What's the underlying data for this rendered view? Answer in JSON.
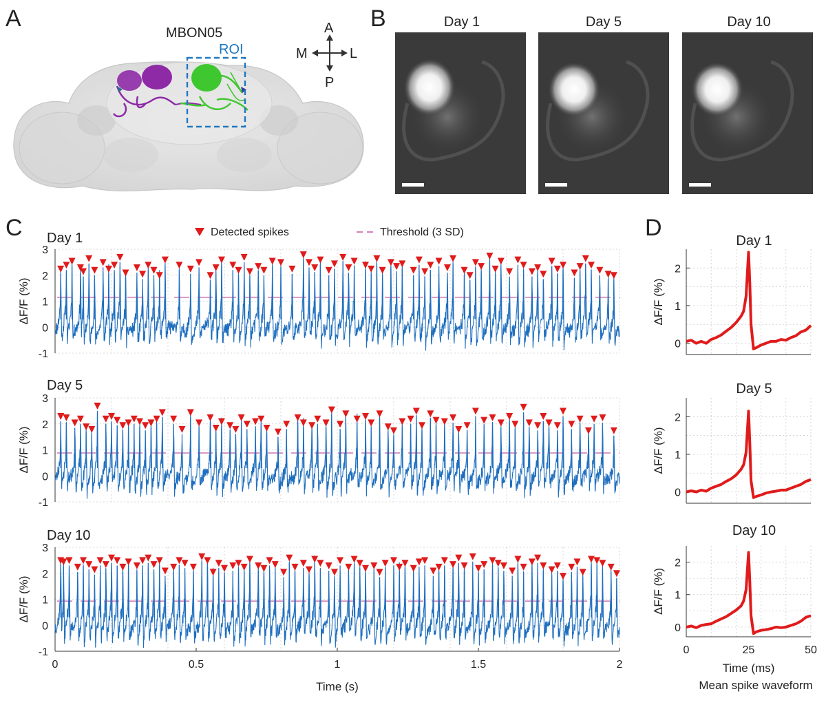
{
  "panels": {
    "A": "A",
    "B": "B",
    "C": "C",
    "D": "D"
  },
  "anatomy": {
    "neuron_label": "MBON05",
    "roi_label": "ROI",
    "compass": {
      "anterior": "A",
      "posterior": "P",
      "medial": "M",
      "lateral": "L"
    },
    "colors": {
      "left_neuron": "#8e2aa6",
      "right_neuron": "#3fc72f",
      "roi_box": "#1f78c1"
    }
  },
  "imaging": {
    "days": [
      "Day 1",
      "Day 5",
      "Day 10"
    ]
  },
  "legend": {
    "spikes_label": "Detected spikes",
    "threshold_label": "Threshold (3 SD)"
  },
  "colors": {
    "trace": "#1f6fbf",
    "spike_marker": "#e01b1b",
    "threshold": "#c45aa0",
    "waveform": "#e01b1b"
  },
  "chart_data": [
    {
      "type": "line",
      "title": "Day 1",
      "xlabel": "Time (s)",
      "ylabel": "ΔF/F (%)",
      "xlim": [
        0,
        2
      ],
      "ylim": [
        -1,
        3
      ],
      "yticks": [
        "3",
        "2",
        "1",
        "0",
        "-1"
      ],
      "xticks": [
        "0",
        "0.5",
        "1",
        "1.5",
        "2"
      ],
      "threshold": 1.15,
      "spike_times": [
        0.02,
        0.04,
        0.06,
        0.09,
        0.1,
        0.12,
        0.14,
        0.17,
        0.19,
        0.21,
        0.23,
        0.25,
        0.29,
        0.31,
        0.33,
        0.35,
        0.37,
        0.39,
        0.44,
        0.48,
        0.51,
        0.55,
        0.57,
        0.59,
        0.63,
        0.65,
        0.67,
        0.69,
        0.72,
        0.74,
        0.77,
        0.8,
        0.84,
        0.88,
        0.9,
        0.92,
        0.94,
        0.97,
        0.99,
        1.02,
        1.04,
        1.06,
        1.1,
        1.12,
        1.14,
        1.16,
        1.19,
        1.21,
        1.23,
        1.27,
        1.29,
        1.31,
        1.33,
        1.36,
        1.39,
        1.41,
        1.45,
        1.47,
        1.49,
        1.51,
        1.54,
        1.56,
        1.58,
        1.61,
        1.64,
        1.66,
        1.69,
        1.71,
        1.73,
        1.76,
        1.78,
        1.8,
        1.84,
        1.86,
        1.88,
        1.9,
        1.93,
        1.96,
        1.98
      ],
      "spike_peaks": [
        2.05,
        2.2,
        2.35,
        2.1,
        1.95,
        2.45,
        2.0,
        2.3,
        2.05,
        2.2,
        2.5,
        1.9,
        2.1,
        1.85,
        2.2,
        2.0,
        1.8,
        2.4,
        2.2,
        2.05,
        2.3,
        1.8,
        2.1,
        2.4,
        2.2,
        2.0,
        2.5,
        1.95,
        2.15,
        2.0,
        2.35,
        2.3,
        2.05,
        2.6,
        2.3,
        2.1,
        2.4,
        2.0,
        2.25,
        2.5,
        2.1,
        2.35,
        2.2,
        2.05,
        2.45,
        2.0,
        2.3,
        2.15,
        2.25,
        2.0,
        2.4,
        1.95,
        2.2,
        2.35,
        2.1,
        2.45,
        2.0,
        1.8,
        2.3,
        2.15,
        2.55,
        2.05,
        2.35,
        1.95,
        2.4,
        2.2,
        1.95,
        2.1,
        1.85,
        2.35,
        2.05,
        2.2,
        1.9,
        2.15,
        2.45,
        2.2,
        2.0,
        1.85,
        1.8
      ],
      "trace_seed": 11
    },
    {
      "type": "line",
      "title": "Day 5",
      "xlabel": "Time (s)",
      "ylabel": "ΔF/F (%)",
      "xlim": [
        0,
        2
      ],
      "ylim": [
        -1,
        3
      ],
      "yticks": [
        "3",
        "2",
        "1",
        "0",
        "-1"
      ],
      "xticks": [
        "0",
        "0.5",
        "1",
        "1.5",
        "2"
      ],
      "threshold": 0.88,
      "spike_times": [
        0.02,
        0.04,
        0.07,
        0.09,
        0.11,
        0.13,
        0.15,
        0.18,
        0.2,
        0.22,
        0.24,
        0.26,
        0.28,
        0.3,
        0.32,
        0.34,
        0.36,
        0.38,
        0.42,
        0.45,
        0.48,
        0.51,
        0.55,
        0.57,
        0.59,
        0.62,
        0.64,
        0.66,
        0.68,
        0.71,
        0.73,
        0.75,
        0.79,
        0.82,
        0.86,
        0.88,
        0.91,
        0.93,
        0.96,
        0.98,
        1.01,
        1.03,
        1.07,
        1.1,
        1.12,
        1.15,
        1.18,
        1.2,
        1.23,
        1.26,
        1.28,
        1.3,
        1.33,
        1.35,
        1.38,
        1.41,
        1.43,
        1.46,
        1.49,
        1.52,
        1.55,
        1.58,
        1.61,
        1.63,
        1.66,
        1.68,
        1.71,
        1.73,
        1.75,
        1.78,
        1.8,
        1.83,
        1.86,
        1.89,
        1.91,
        1.94,
        1.98
      ],
      "spike_peaks": [
        2.1,
        2.05,
        1.85,
        2.0,
        1.7,
        1.6,
        2.5,
        2.0,
        2.1,
        1.95,
        1.75,
        1.85,
        2.0,
        1.9,
        1.75,
        1.85,
        2.0,
        2.25,
        2.0,
        1.6,
        2.25,
        1.85,
        2.05,
        1.65,
        1.9,
        1.75,
        1.6,
        2.05,
        1.8,
        1.9,
        2.0,
        1.65,
        1.5,
        1.8,
        2.05,
        1.85,
        1.75,
        2.0,
        1.85,
        2.35,
        1.8,
        2.2,
        2.0,
        2.1,
        1.85,
        2.2,
        1.7,
        1.55,
        1.9,
        2.0,
        2.3,
        1.75,
        2.2,
        1.95,
        1.9,
        2.05,
        1.6,
        1.75,
        2.3,
        1.95,
        2.05,
        1.85,
        2.1,
        1.8,
        2.45,
        1.85,
        1.75,
        2.1,
        1.85,
        1.75,
        2.3,
        1.8,
        2.0,
        1.55,
        2.0,
        2.05,
        1.55
      ],
      "trace_seed": 23
    },
    {
      "type": "line",
      "title": "Day 10",
      "xlabel": "Time (s)",
      "ylabel": "ΔF/F (%)",
      "xlim": [
        0,
        2
      ],
      "ylim": [
        -1,
        3
      ],
      "yticks": [
        "3",
        "2",
        "1",
        "0",
        "-1"
      ],
      "xticks": [
        "0",
        "0.5",
        "1",
        "1.5",
        "2"
      ],
      "threshold": 0.93,
      "spike_times": [
        0.02,
        0.03,
        0.05,
        0.08,
        0.1,
        0.12,
        0.14,
        0.16,
        0.18,
        0.2,
        0.22,
        0.24,
        0.26,
        0.29,
        0.31,
        0.33,
        0.35,
        0.37,
        0.39,
        0.42,
        0.44,
        0.46,
        0.49,
        0.52,
        0.54,
        0.56,
        0.58,
        0.6,
        0.63,
        0.65,
        0.67,
        0.69,
        0.72,
        0.74,
        0.76,
        0.78,
        0.81,
        0.83,
        0.85,
        0.88,
        0.9,
        0.92,
        0.94,
        0.97,
        0.99,
        1.01,
        1.04,
        1.06,
        1.08,
        1.1,
        1.13,
        1.15,
        1.17,
        1.2,
        1.22,
        1.24,
        1.27,
        1.29,
        1.31,
        1.34,
        1.36,
        1.38,
        1.41,
        1.43,
        1.45,
        1.48,
        1.5,
        1.52,
        1.55,
        1.57,
        1.59,
        1.62,
        1.64,
        1.66,
        1.69,
        1.71,
        1.73,
        1.76,
        1.78,
        1.8,
        1.83,
        1.85,
        1.87,
        1.9,
        1.92,
        1.94,
        1.97,
        1.99
      ],
      "spike_peaks": [
        2.3,
        2.25,
        2.3,
        2.05,
        2.3,
        2.15,
        1.95,
        2.3,
        2.15,
        2.4,
        2.3,
        2.05,
        2.25,
        2.1,
        2.3,
        2.4,
        2.15,
        2.3,
        1.9,
        2.05,
        2.3,
        2.2,
        2.05,
        2.45,
        2.3,
        1.85,
        2.2,
        2.0,
        2.1,
        2.2,
        2.05,
        2.35,
        2.1,
        2.0,
        2.3,
        2.15,
        1.85,
        2.4,
        2.05,
        2.2,
        1.95,
        2.35,
        2.2,
        2.1,
        1.85,
        2.3,
        2.05,
        2.35,
        2.2,
        2.0,
        2.1,
        1.85,
        2.2,
        2.3,
        2.05,
        2.2,
        2.0,
        2.25,
        2.3,
        1.9,
        2.05,
        2.3,
        2.15,
        2.4,
        2.1,
        2.45,
        2.0,
        2.15,
        2.3,
        2.2,
        2.1,
        1.9,
        2.35,
        2.05,
        2.25,
        2.4,
        2.1,
        1.95,
        2.1,
        1.7,
        2.05,
        2.25,
        1.85,
        2.35,
        2.3,
        2.2,
        2.05,
        1.8
      ],
      "trace_seed": 37
    },
    {
      "type": "line",
      "title": "Day 1",
      "xlabel": "Time (ms)",
      "ylabel": "ΔF/F (%)",
      "xlim": [
        0,
        50
      ],
      "ylim": [
        -0.3,
        2.5
      ],
      "yticks": [
        "2",
        "1",
        "0"
      ],
      "xticks": [
        "0",
        "25",
        "50"
      ],
      "x": [
        0,
        2,
        4,
        6,
        8,
        10,
        12,
        14,
        16,
        18,
        20,
        22,
        23,
        24,
        25,
        25.5,
        26,
        27,
        28,
        30,
        32,
        34,
        36,
        38,
        40,
        42,
        44,
        46,
        48,
        50
      ],
      "y": [
        0.05,
        0.08,
        0.0,
        0.05,
        0.0,
        0.1,
        0.15,
        0.22,
        0.32,
        0.42,
        0.55,
        0.72,
        0.85,
        1.25,
        2.42,
        1.6,
        0.5,
        -0.15,
        -0.12,
        -0.05,
        0.0,
        0.05,
        0.05,
        0.1,
        0.08,
        0.15,
        0.2,
        0.3,
        0.35,
        0.47
      ]
    },
    {
      "type": "line",
      "title": "Day 5",
      "xlabel": "Time (ms)",
      "ylabel": "ΔF/F (%)",
      "xlim": [
        0,
        50
      ],
      "ylim": [
        -0.3,
        2.5
      ],
      "yticks": [
        "2",
        "1",
        "0"
      ],
      "xticks": [
        "0",
        "25",
        "50"
      ],
      "x": [
        0,
        2,
        4,
        6,
        8,
        10,
        12,
        14,
        16,
        18,
        20,
        22,
        23,
        24,
        25,
        25.5,
        26,
        27,
        28,
        30,
        32,
        34,
        36,
        38,
        40,
        42,
        44,
        46,
        48,
        50
      ],
      "y": [
        0.0,
        0.03,
        0.0,
        0.05,
        0.02,
        0.1,
        0.15,
        0.2,
        0.28,
        0.35,
        0.45,
        0.6,
        0.72,
        1.05,
        2.15,
        1.3,
        0.3,
        -0.15,
        -0.12,
        -0.08,
        -0.03,
        0.0,
        0.02,
        0.05,
        0.05,
        0.1,
        0.15,
        0.2,
        0.28,
        0.33
      ]
    },
    {
      "type": "line",
      "title": "Day 10",
      "xlabel": "Time (ms)",
      "ylabel": "ΔF/F (%)",
      "xlim": [
        0,
        50
      ],
      "ylim": [
        -0.3,
        2.5
      ],
      "yticks": [
        "2",
        "1",
        "0"
      ],
      "xticks": [
        "0",
        "25",
        "50"
      ],
      "x": [
        0,
        2,
        4,
        6,
        8,
        10,
        12,
        14,
        16,
        18,
        20,
        22,
        23,
        24,
        25,
        25.5,
        26,
        27,
        28,
        30,
        32,
        34,
        36,
        38,
        40,
        42,
        44,
        46,
        48,
        50
      ],
      "y": [
        0.0,
        0.03,
        -0.02,
        0.05,
        0.08,
        0.1,
        0.18,
        0.25,
        0.32,
        0.42,
        0.52,
        0.65,
        0.8,
        1.15,
        2.3,
        1.4,
        0.35,
        -0.2,
        -0.15,
        -0.1,
        -0.08,
        -0.05,
        0.0,
        -0.02,
        0.0,
        0.05,
        0.1,
        0.18,
        0.3,
        0.35
      ]
    }
  ],
  "waveform_caption": "Mean spike waveform"
}
